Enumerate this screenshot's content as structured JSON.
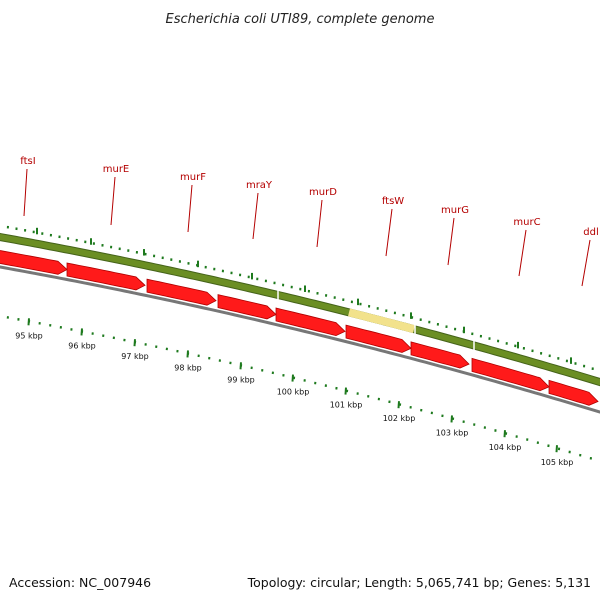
{
  "title": "Escherichia coli UTI89, complete genome",
  "footer": {
    "accession": "Accession: NC_007946",
    "summary": "Topology: circular; Length: 5,065,741 bp; Genes: 5,131"
  },
  "colors": {
    "gene_label": "#b40000",
    "arrow": "#ff1a1a",
    "arrow_edge": "#b00000",
    "track_green": "#6b8e23",
    "track_green_edge": "#45631a",
    "track_highlight": "#f2e28c",
    "tick_green": "#1e7a1e",
    "backbone": "#777777"
  },
  "genes": [
    {
      "name": "ftsI"
    },
    {
      "name": "murE"
    },
    {
      "name": "murF"
    },
    {
      "name": "mraY"
    },
    {
      "name": "murD"
    },
    {
      "name": "ftsW"
    },
    {
      "name": "murG"
    },
    {
      "name": "murC"
    },
    {
      "name": "ddl"
    }
  ],
  "kbp_ticks": [
    "95 kbp",
    "96 kbp",
    "97 kbp",
    "98 kbp",
    "99 kbp",
    "100 kbp",
    "101 kbp",
    "102 kbp",
    "103 kbp",
    "104 kbp",
    "105 kbp"
  ]
}
